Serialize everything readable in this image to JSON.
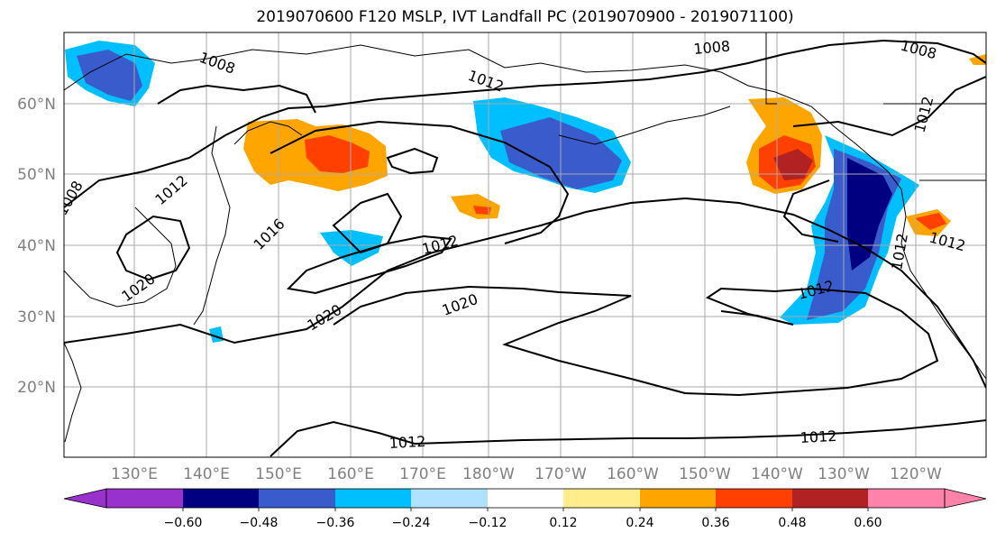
{
  "title": "2019070600 F120 MSLP, IVT Landfall PC (2019070900 - 2019071100)",
  "lat_labels": [
    "60°N",
    "50°N",
    "40°N",
    "30°N",
    "20°N"
  ],
  "lon_labels": [
    "130°E",
    "140°E",
    "150°E",
    "160°E",
    "170°E",
    "180°W",
    "170°W",
    "160°W",
    "150°W",
    "140°W",
    "130°W",
    "120°W"
  ],
  "contour_labels": [
    "1008",
    "1008",
    "1008",
    "1012",
    "1012",
    "1012",
    "1016",
    "1008",
    "1012",
    "1020",
    "1020",
    "1012",
    "1012",
    "1012",
    "1020",
    "1012",
    "1012"
  ],
  "colorbar": {
    "ticks": [
      "−0.60",
      "−0.48",
      "−0.36",
      "−0.24",
      "−0.12",
      "0.12",
      "0.24",
      "0.36",
      "0.48",
      "0.60"
    ],
    "colors": [
      "#9932CC",
      "#000080",
      "#3A5BCB",
      "#00BFFF",
      "#B0E2FF",
      "#FFFFFF",
      "#FFEC8B",
      "#FFA500",
      "#FF4000",
      "#B22222",
      "#FF82AB"
    ]
  }
}
